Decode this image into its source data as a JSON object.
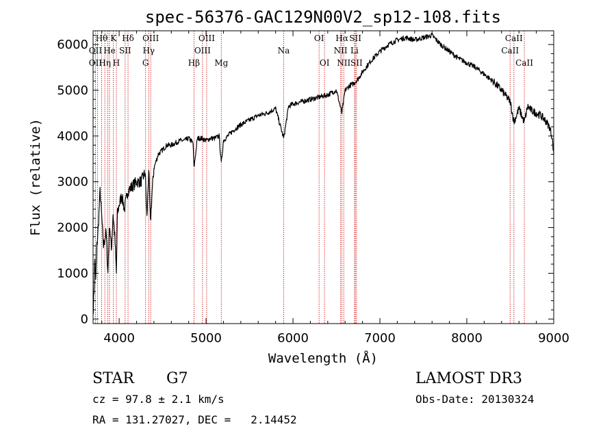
{
  "chart_data": {
    "type": "line",
    "title": "spec-56376-GAC129N00V2_sp12-108.fits",
    "xlabel": "Wavelength (Å)",
    "ylabel": "Flux (relative)",
    "xlim": [
      3700,
      9000
    ],
    "ylim": [
      -100,
      6300
    ],
    "x_ticks": [
      4000,
      5000,
      6000,
      7000,
      8000,
      9000
    ],
    "y_ticks": [
      0,
      1000,
      2000,
      3000,
      4000,
      5000,
      6000
    ],
    "series": [
      {
        "name": "flux",
        "x": [
          3700,
          3710,
          3720,
          3730,
          3740,
          3760,
          3780,
          3800,
          3820,
          3850,
          3870,
          3890,
          3910,
          3930,
          3950,
          3968,
          3980,
          4000,
          4030,
          4060,
          4100,
          4150,
          4200,
          4250,
          4300,
          4320,
          4340,
          4360,
          4380,
          4400,
          4450,
          4500,
          4550,
          4600,
          4650,
          4700,
          4750,
          4800,
          4850,
          4861,
          4900,
          4950,
          5000,
          5050,
          5100,
          5150,
          5175,
          5200,
          5300,
          5400,
          5500,
          5600,
          5700,
          5800,
          5893,
          5950,
          6000,
          6100,
          6200,
          6300,
          6400,
          6500,
          6563,
          6600,
          6650,
          6700,
          6750,
          6800,
          6900,
          7000,
          7100,
          7200,
          7300,
          7400,
          7500,
          7600,
          7700,
          7800,
          7900,
          8000,
          8100,
          8200,
          8300,
          8400,
          8500,
          8542,
          8600,
          8662,
          8700,
          8750,
          8800,
          8850,
          8900,
          8950,
          8980,
          9000
        ],
        "y": [
          100,
          600,
          1300,
          800,
          1500,
          2000,
          2800,
          2200,
          1600,
          1900,
          1000,
          2100,
          1500,
          2300,
          1800,
          1000,
          2300,
          2500,
          2700,
          2400,
          2800,
          2900,
          3000,
          3000,
          3200,
          2200,
          3300,
          2100,
          2800,
          3300,
          3600,
          3700,
          3800,
          3800,
          3850,
          3900,
          3900,
          3950,
          3850,
          3300,
          3950,
          3950,
          3900,
          3950,
          3950,
          4000,
          3400,
          3900,
          4100,
          4250,
          4350,
          4450,
          4500,
          4600,
          3950,
          4650,
          4700,
          4750,
          4800,
          4850,
          4900,
          5000,
          4500,
          5000,
          5100,
          5150,
          5250,
          5400,
          5650,
          5850,
          6000,
          6100,
          6150,
          6100,
          6150,
          6200,
          6000,
          5850,
          5700,
          5600,
          5500,
          5350,
          5200,
          5000,
          4750,
          4300,
          4600,
          4300,
          4650,
          4550,
          4500,
          4450,
          4350,
          4200,
          4000,
          3600
        ]
      }
    ],
    "spectral_lines": [
      {
        "label": "Hθ",
        "wavelength": 3798,
        "row": 1
      },
      {
        "label": "K",
        "wavelength": 3934,
        "row": 1
      },
      {
        "label": "Hδ",
        "wavelength": 4102,
        "row": 1
      },
      {
        "label": "OIII",
        "wavelength": 4363,
        "row": 1
      },
      {
        "label": "OIII",
        "wavelength": 5007,
        "row": 1
      },
      {
        "label": "OI",
        "wavelength": 6300,
        "row": 1
      },
      {
        "label": "Hα",
        "wavelength": 6563,
        "row": 1
      },
      {
        "label": "SII",
        "wavelength": 6717,
        "row": 1
      },
      {
        "label": "CaII",
        "wavelength": 8542,
        "row": 1
      },
      {
        "label": "OII",
        "wavelength": 3727,
        "row": 2
      },
      {
        "label": "He",
        "wavelength": 3889,
        "row": 2
      },
      {
        "label": "SII",
        "wavelength": 4069,
        "row": 2
      },
      {
        "label": "Hγ",
        "wavelength": 4340,
        "row": 2
      },
      {
        "label": "OIII",
        "wavelength": 4959,
        "row": 2
      },
      {
        "label": "Na",
        "wavelength": 5893,
        "row": 2
      },
      {
        "label": "NII",
        "wavelength": 6548,
        "row": 2
      },
      {
        "label": "Li",
        "wavelength": 6708,
        "row": 2
      },
      {
        "label": "CaII",
        "wavelength": 8498,
        "row": 2
      },
      {
        "label": "OII",
        "wavelength": 3727,
        "row": 3
      },
      {
        "label": "Hη",
        "wavelength": 3835,
        "row": 3
      },
      {
        "label": "H",
        "wavelength": 3968,
        "row": 3
      },
      {
        "label": "G",
        "wavelength": 4304,
        "row": 3
      },
      {
        "label": "Hβ",
        "wavelength": 4861,
        "row": 3
      },
      {
        "label": "Mg",
        "wavelength": 5175,
        "row": 3
      },
      {
        "label": "OI",
        "wavelength": 6363,
        "row": 3
      },
      {
        "label": "NII",
        "wavelength": 6584,
        "row": 3
      },
      {
        "label": "SII",
        "wavelength": 6731,
        "row": 3
      },
      {
        "label": "CaII",
        "wavelength": 8662,
        "row": 3
      }
    ],
    "extra_line_markers": [
      3750,
      3870,
      3889,
      6717,
      6731
    ]
  },
  "footer": {
    "object_class": "STAR",
    "subclass": "G7",
    "survey": "LAMOST DR3",
    "cz": "cz = 97.8 ± 2.1 km/s",
    "obs_date": "Obs-Date: 20130324",
    "coords": "RA = 131.27027, DEC =   2.14452"
  },
  "colors": {
    "spectrum": "#000000",
    "line_markers": "#cc0000",
    "axes": "#000000"
  }
}
